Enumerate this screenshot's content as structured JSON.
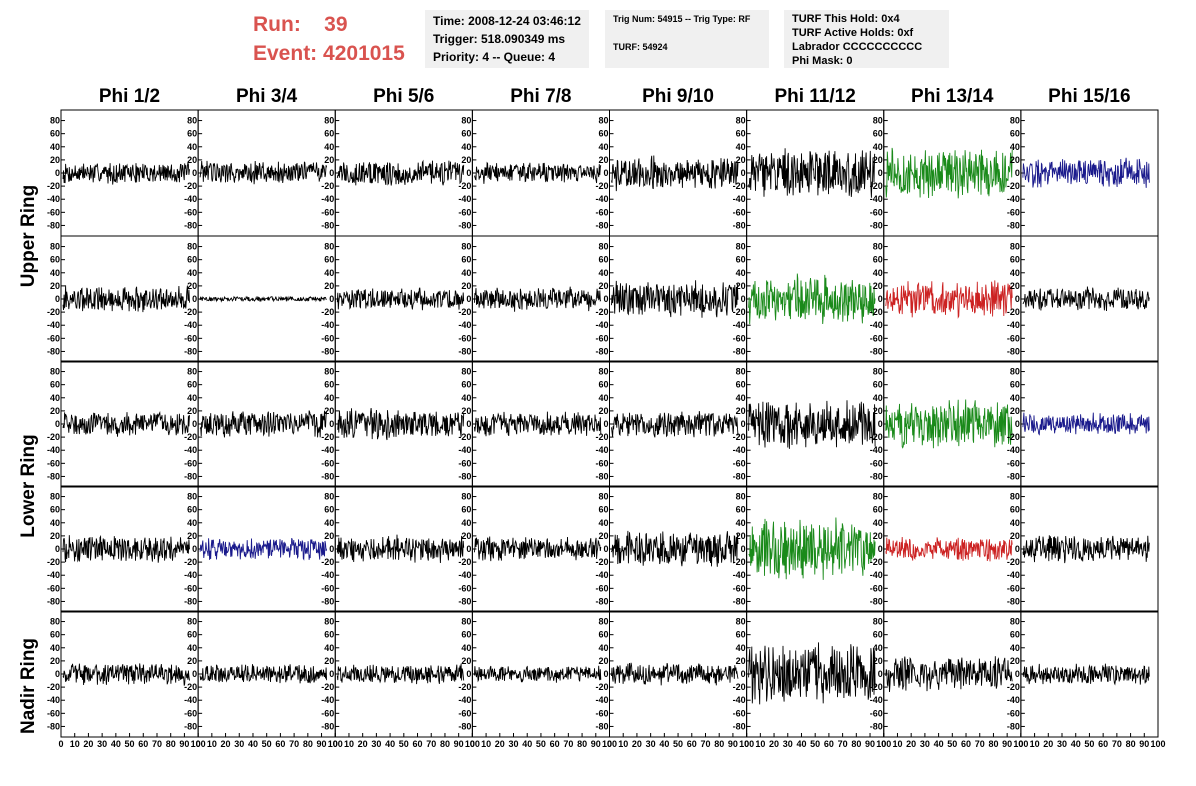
{
  "header": {
    "run_label": "Run:",
    "run_value": "39",
    "event_label": "Event:",
    "event_value": "4201015",
    "time": "Time: 2008-12-24 03:46:12",
    "trigger": "Trigger: 518.090349 ms",
    "priority": "Priority: 4 -- Queue: 4",
    "trig_info": "Trig Num: 54915 -- Trig Type: RF",
    "turf": "TURF: 54924",
    "turf_hold": "TURF This Hold: 0x4",
    "turf_active": "TURF Active Holds: 0xf",
    "labrador": "Labrador CCCCCCCCCC",
    "phi_mask": "Phi Mask: 0"
  },
  "columns": [
    "Phi 1/2",
    "Phi 3/4",
    "Phi 5/6",
    "Phi 7/8",
    "Phi 9/10",
    "Phi 11/12",
    "Phi 13/14",
    "Phi 15/16"
  ],
  "ring_groups": [
    "Upper Ring",
    "Lower Ring",
    "Nadir Ring"
  ],
  "colors": {
    "black": "#000000",
    "green": "#1a8a1a",
    "blue": "#1a1a8c",
    "red": "#cc2222"
  },
  "chart_data": {
    "type": "line",
    "xlim": [
      0,
      100
    ],
    "ylim": [
      -90,
      90
    ],
    "y_ticks": [
      -80,
      -60,
      -40,
      -20,
      0,
      20,
      40,
      60,
      80
    ],
    "x_ticks": [
      0,
      10,
      20,
      30,
      40,
      50,
      60,
      70,
      80,
      90,
      100
    ],
    "rows": [
      {
        "amps": [
          18,
          20,
          22,
          17,
          28,
          40,
          42,
          24
        ],
        "colors": [
          "black",
          "black",
          "black",
          "black",
          "black",
          "black",
          "green",
          "blue"
        ]
      },
      {
        "amps": [
          22,
          4,
          18,
          20,
          30,
          40,
          30,
          20
        ],
        "colors": [
          "black",
          "black",
          "black",
          "black",
          "black",
          "green",
          "red",
          "black"
        ]
      },
      {
        "amps": [
          20,
          22,
          25,
          20,
          22,
          42,
          40,
          18
        ],
        "colors": [
          "black",
          "black",
          "black",
          "black",
          "black",
          "black",
          "green",
          "blue"
        ]
      },
      {
        "amps": [
          22,
          18,
          22,
          20,
          30,
          50,
          20,
          22
        ],
        "colors": [
          "black",
          "blue",
          "black",
          "black",
          "black",
          "green",
          "red",
          "black"
        ]
      },
      {
        "amps": [
          18,
          16,
          16,
          14,
          18,
          50,
          28,
          18
        ],
        "colors": [
          "black",
          "black",
          "black",
          "black",
          "black",
          "black",
          "black",
          "black"
        ]
      }
    ]
  }
}
